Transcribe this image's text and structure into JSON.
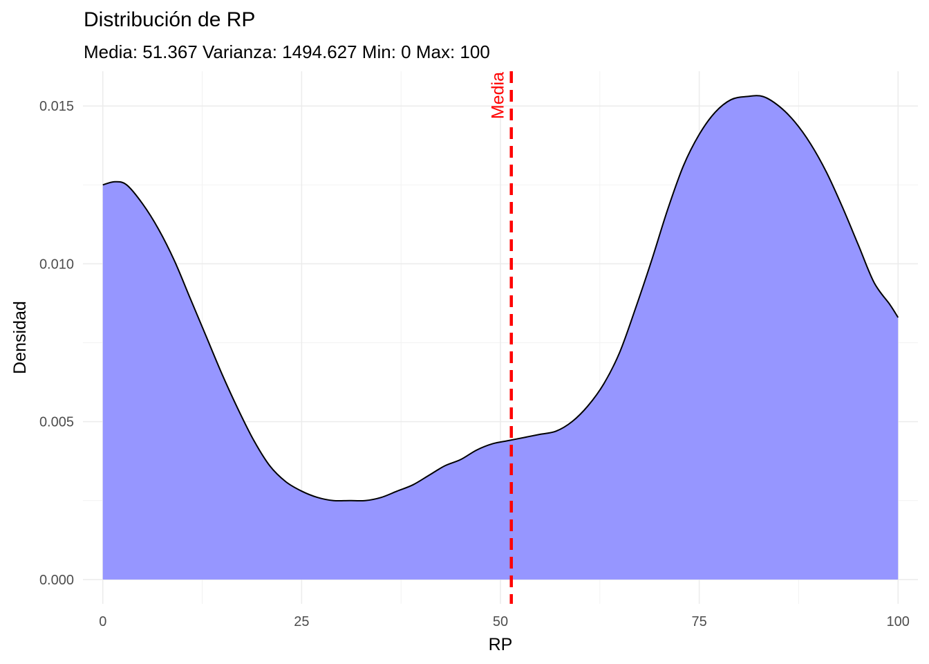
{
  "chart_data": {
    "type": "area",
    "title": "Distribución de RP",
    "subtitle": "Media: 51.367 Varianza: 1494.627 Min: 0 Max: 100",
    "xlabel": "RP",
    "ylabel": "Densidad",
    "xlim": [
      -2.5,
      102.5
    ],
    "ylim": [
      -0.00077,
      0.0161
    ],
    "x_ticks": [
      0,
      25,
      50,
      75,
      100
    ],
    "x_tick_labels": [
      "0",
      "25",
      "50",
      "75",
      "100"
    ],
    "y_ticks": [
      0,
      0.005,
      0.01,
      0.015
    ],
    "y_tick_labels": [
      "0.000",
      "0.005",
      "0.010",
      "0.015"
    ],
    "grid": true,
    "series": [
      {
        "x": [
          0,
          1.5,
          3,
          5,
          7,
          9,
          11,
          13,
          15,
          17,
          19,
          21,
          23,
          25,
          27,
          29,
          31,
          33,
          35,
          37,
          39,
          41,
          43,
          45,
          47,
          49,
          51,
          53,
          55,
          57,
          59,
          61,
          63,
          65,
          67,
          69,
          71,
          73,
          75,
          77,
          79,
          81,
          83,
          85,
          87,
          89,
          91,
          93,
          95,
          97,
          99,
          100
        ],
        "y": [
          0.0125,
          0.0126,
          0.0125,
          0.0119,
          0.0111,
          0.0101,
          0.0089,
          0.0077,
          0.0065,
          0.0054,
          0.0044,
          0.0036,
          0.0031,
          0.0028,
          0.0026,
          0.0025,
          0.0025,
          0.0025,
          0.0026,
          0.0028,
          0.003,
          0.0033,
          0.0036,
          0.0038,
          0.0041,
          0.0043,
          0.0044,
          0.0045,
          0.0046,
          0.0047,
          0.005,
          0.0055,
          0.0062,
          0.0072,
          0.0086,
          0.0101,
          0.0117,
          0.0131,
          0.0141,
          0.0148,
          0.0152,
          0.0153,
          0.0153,
          0.015,
          0.0145,
          0.0138,
          0.0129,
          0.0118,
          0.0106,
          0.0094,
          0.0087,
          0.0083
        ],
        "fill_color": "#9696ff",
        "line_color": "#000000"
      }
    ],
    "vline": {
      "x": 51.367,
      "label": "Media",
      "color": "#ff0000",
      "style": "dashed"
    }
  }
}
